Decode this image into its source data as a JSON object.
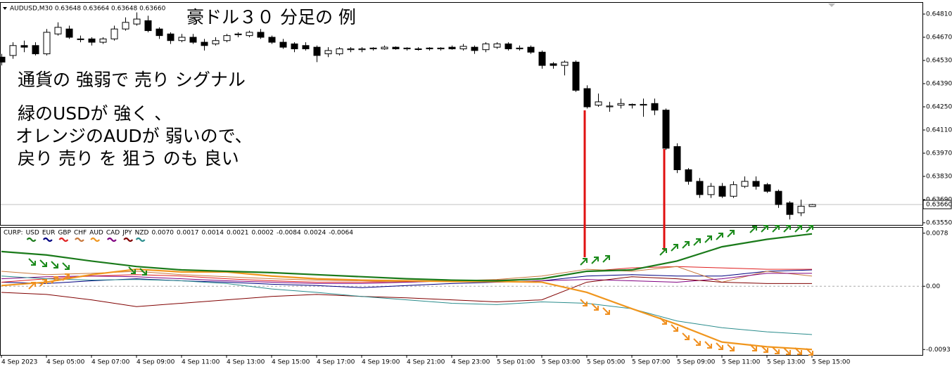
{
  "chart_data": [
    {
      "type": "candlestick",
      "header": "AUDUSD,M30  0.63648 0.63664 0.63648 0.63660",
      "title": "豪ドル３０ 分足の 例",
      "annotations": [
        "通貨の 強弱で 売り シグナル",
        "緑のUSDが 強く 、",
        "オレンジのAUDが 弱いので、",
        "戻り 売り を 狙う のも 良い"
      ],
      "open": [
        0.6455,
        0.6456,
        0.6462,
        0.6462,
        0.6457,
        0.6469,
        0.6472,
        0.6466,
        0.6466,
        0.6464,
        0.6466,
        0.6472,
        0.6475,
        0.6477,
        0.6472,
        0.6469,
        0.6465,
        0.6467,
        0.6464,
        0.6463,
        0.6465,
        0.64685,
        0.6468,
        0.647,
        0.6467,
        0.6464,
        0.6463,
        0.6462,
        0.6461,
        0.6457,
        0.6457,
        0.64595,
        0.64595,
        0.646,
        0.646,
        0.6461,
        0.646,
        0.646,
        0.64605,
        0.646,
        0.6461,
        0.646,
        0.6461,
        0.64595,
        0.6461,
        0.6463,
        0.646,
        0.6461,
        0.6458,
        0.6451,
        0.645,
        0.6452,
        0.6436,
        0.6426,
        0.6425,
        0.6426,
        0.6426,
        0.6426,
        0.6427,
        0.6423,
        0.6401,
        0.6387,
        0.638,
        0.6372,
        0.6377,
        0.6371,
        0.6377,
        0.638,
        0.6378,
        0.6374,
        0.6367,
        0.6361,
        0.63648
      ],
      "high": [
        0.6457,
        0.6464,
        0.6465,
        0.6464,
        0.6472,
        0.6476,
        0.6474,
        0.6468,
        0.6467,
        0.6467,
        0.6474,
        0.6479,
        0.6482,
        0.648,
        0.6473,
        0.647,
        0.6469,
        0.6469,
        0.6466,
        0.6467,
        0.6469,
        0.647,
        0.6471,
        0.6472,
        0.6468,
        0.6466,
        0.6464,
        0.6464,
        0.6462,
        0.6461,
        0.6461,
        0.6461,
        0.6461,
        0.6461,
        0.6462,
        0.64615,
        0.6461,
        0.6461,
        0.6461,
        0.6461,
        0.6462,
        0.6463,
        0.6462,
        0.6464,
        0.6464,
        0.6464,
        0.6462,
        0.6462,
        0.6459,
        0.6452,
        0.6453,
        0.6453,
        0.6438,
        0.6433,
        0.6428,
        0.643,
        0.6427,
        0.643,
        0.643,
        0.6424,
        0.6403,
        0.6388,
        0.6382,
        0.6379,
        0.6379,
        0.638,
        0.6383,
        0.6383,
        0.6379,
        0.6375,
        0.6368,
        0.6369,
        0.63664
      ],
      "low": [
        0.645,
        0.6454,
        0.6458,
        0.6456,
        0.6456,
        0.6468,
        0.6466,
        0.6464,
        0.6462,
        0.6463,
        0.6465,
        0.6471,
        0.6474,
        0.647,
        0.6466,
        0.6463,
        0.6464,
        0.6463,
        0.6459,
        0.6462,
        0.6464,
        0.6467,
        0.6467,
        0.6466,
        0.6463,
        0.646,
        0.6458,
        0.6459,
        0.6452,
        0.6455,
        0.6456,
        0.6458,
        0.6458,
        0.6459,
        0.64595,
        0.64595,
        0.6459,
        0.6459,
        0.6459,
        0.6459,
        0.64595,
        0.6459,
        0.6457,
        0.6458,
        0.646,
        0.6459,
        0.6459,
        0.6457,
        0.6448,
        0.6448,
        0.6444,
        0.6434,
        0.6424,
        0.6425,
        0.6422,
        0.6424,
        0.6424,
        0.6419,
        0.642,
        0.6399,
        0.6385,
        0.6378,
        0.637,
        0.637,
        0.637,
        0.637,
        0.6376,
        0.6375,
        0.6373,
        0.6364,
        0.6357,
        0.6359,
        0.63648
      ],
      "close": [
        0.6452,
        0.6462,
        0.6461,
        0.6457,
        0.647,
        0.6473,
        0.6467,
        0.6466,
        0.6464,
        0.6466,
        0.6472,
        0.6476,
        0.6478,
        0.6471,
        0.6468,
        0.6465,
        0.6467,
        0.6464,
        0.6462,
        0.6465,
        0.6468,
        0.6469,
        0.647,
        0.6467,
        0.6464,
        0.6461,
        0.646,
        0.646,
        0.6456,
        0.6459,
        0.646,
        0.646,
        0.646,
        0.64605,
        0.6461,
        0.646,
        0.64605,
        0.646,
        0.646,
        0.64605,
        0.646,
        0.64615,
        0.6459,
        0.6463,
        0.6463,
        0.646,
        0.64605,
        0.6458,
        0.645,
        0.645,
        0.6452,
        0.6435,
        0.6425,
        0.6428,
        0.64255,
        0.6427,
        0.64265,
        0.64265,
        0.6423,
        0.64,
        0.6387,
        0.638,
        0.6372,
        0.6377,
        0.6371,
        0.6378,
        0.638,
        0.6377,
        0.6374,
        0.6366,
        0.636,
        0.6365,
        0.6366
      ],
      "up_color": "#ffffff",
      "down_color": "#000000",
      "ylim": [
        0.63537,
        0.64878
      ],
      "yticks": [
        {
          "value": 0.6481,
          "label": "0.64810"
        },
        {
          "value": 0.6467,
          "label": "0.64670"
        },
        {
          "value": 0.6453,
          "label": "0.64530"
        },
        {
          "value": 0.6439,
          "label": "0.64390"
        },
        {
          "value": 0.6425,
          "label": "0.64250"
        },
        {
          "value": 0.6411,
          "label": "0.64110"
        },
        {
          "value": 0.6397,
          "label": "0.63970"
        },
        {
          "value": 0.6383,
          "label": "0.63830"
        },
        {
          "value": 0.6369,
          "label": "0.63690"
        },
        {
          "value": 0.6355,
          "label": "0.63550"
        }
      ],
      "last_price": {
        "value": 0.6366,
        "label": "0.63660"
      }
    },
    {
      "type": "line",
      "name": "CURP:",
      "categories": [
        "4 Sep 2023",
        "4 Sep 05:00",
        "4 Sep 07:00",
        "4 Sep 09:00",
        "4 Sep 11:00",
        "4 Sep 13:00",
        "4 Sep 15:00",
        "4 Sep 17:00",
        "4 Sep 19:00",
        "4 Sep 21:00",
        "4 Sep 23:00",
        "5 Sep 01:00",
        "5 Sep 03:00",
        "5 Sep 05:00",
        "5 Sep 07:00",
        "5 Sep 09:00",
        "5 Sep 11:00",
        "5 Sep 13:00",
        "5 Sep 15:00"
      ],
      "series": [
        {
          "name": "USD",
          "color": "#1a7a1a",
          "values": [
            0.0051,
            0.0046,
            0.0037,
            0.0029,
            0.0024,
            0.0022,
            0.002,
            0.0017,
            0.0014,
            0.0011,
            0.0009,
            0.0008,
            0.0011,
            0.0022,
            0.0024,
            0.0037,
            0.0058,
            0.0069,
            0.0077
          ]
        },
        {
          "name": "EUR",
          "color": "#000080",
          "values": [
            0.0006,
            0.0004,
            0.0008,
            0.0011,
            0.0008,
            0.0006,
            0.0003,
            0.0001,
            -0.0002,
            0.0001,
            0.0004,
            0.0006,
            0.0008,
            0.0015,
            0.0017,
            0.0015,
            0.0015,
            0.0022,
            0.0024
          ]
        },
        {
          "name": "GBP",
          "color": "#e02020",
          "values": [
            0.0006,
            0.0011,
            0.0015,
            0.0017,
            0.0015,
            0.0011,
            0.0008,
            0.0006,
            0.0006,
            0.0007,
            0.0008,
            0.0009,
            0.0011,
            0.0022,
            0.0027,
            0.0029,
            0.0027,
            0.0025,
            0.0025
          ]
        },
        {
          "name": "CHF",
          "color": "#c8783c",
          "values": [
            0.0022,
            0.0017,
            0.0019,
            0.0022,
            0.0017,
            0.0014,
            0.0011,
            0.0009,
            0.0008,
            0.0006,
            0.0008,
            0.001,
            0.0015,
            0.0025,
            0.0022,
            0.0029,
            0.0006,
            0.0022,
            0.0015
          ]
        },
        {
          "name": "AUD",
          "color": "#f0961e",
          "values": [
            0.0001,
            0.0006,
            0.0017,
            0.0025,
            0.0021,
            0.0021,
            0.0015,
            0.0011,
            0.0009,
            0.0008,
            0.0007,
            0.0007,
            0.0006,
            -0.0009,
            -0.0033,
            -0.0056,
            -0.0082,
            -0.0089,
            -0.0093
          ]
        },
        {
          "name": "CAD",
          "color": "#800080",
          "values": [
            0.0011,
            0.0014,
            0.0015,
            0.0014,
            0.0011,
            0.0008,
            0.0006,
            0.0004,
            0.0004,
            0.0006,
            0.0008,
            0.0006,
            0.0008,
            0.001,
            0.0008,
            0.0006,
            0.0011,
            0.0019,
            0.0019
          ]
        },
        {
          "name": "JPY",
          "color": "#800000",
          "values": [
            -0.0009,
            -0.0012,
            -0.002,
            -0.003,
            -0.0025,
            -0.002,
            -0.0015,
            -0.0012,
            -0.0015,
            -0.0017,
            -0.002,
            -0.0023,
            -0.002,
            0.0006,
            0.0014,
            0.0011,
            0.0006,
            0.0004,
            0.0004
          ]
        },
        {
          "name": "NZD",
          "color": "#2a8c8c",
          "values": [
            0.0015,
            0.0011,
            0.0009,
            0.001,
            0.0008,
            0.0004,
            -0.0004,
            -0.0009,
            -0.0015,
            -0.002,
            -0.0025,
            -0.0027,
            -0.0023,
            -0.0025,
            -0.0033,
            -0.0051,
            -0.0061,
            -0.0067,
            -0.0071
          ]
        }
      ],
      "legend_values": [
        "0.0070",
        "0.0017",
        "0.0014",
        "0.0021",
        "0.0002",
        "-0.0084",
        "0.0024",
        "-0.0064"
      ],
      "ylim": [
        -0.0101,
        0.0085
      ],
      "yticks": [
        0.0078,
        {
          "value": 0,
          "label": "0.00"
        },
        -0.0093
      ]
    }
  ]
}
